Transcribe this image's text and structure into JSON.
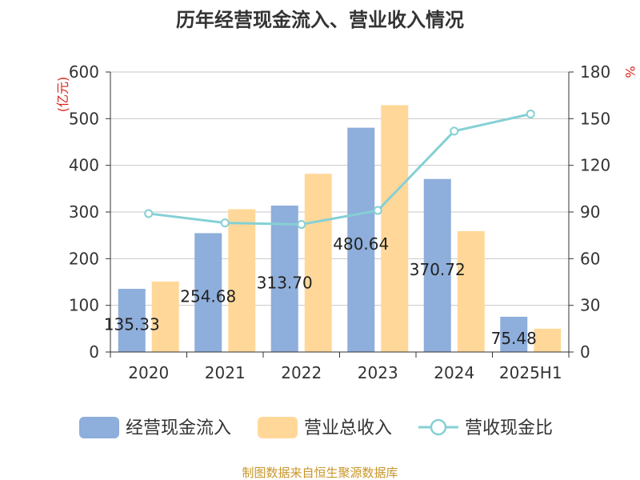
{
  "chart_data": {
    "type": "bar",
    "title": "历年经营现金流入、营业收入情况",
    "categories": [
      "2020",
      "2021",
      "2022",
      "2023",
      "2024",
      "2025H1"
    ],
    "series": [
      {
        "name": "经营现金流入",
        "type": "bar",
        "axis": "left",
        "color": "#8eaedb",
        "values": [
          135.33,
          254.68,
          313.7,
          480.64,
          370.72,
          75.48
        ],
        "labels": [
          "135.33",
          "254.68",
          "313.70",
          "480.64",
          "370.72",
          "75.48"
        ]
      },
      {
        "name": "营业总收入",
        "type": "bar",
        "axis": "left",
        "color": "#ffd899",
        "values": [
          151,
          306,
          382,
          529,
          259,
          50
        ]
      },
      {
        "name": "营收现金比",
        "type": "line",
        "axis": "right",
        "color": "#85d0d5",
        "values": [
          89,
          83,
          82,
          91,
          142,
          153
        ]
      }
    ],
    "y_left": {
      "unit": "(亿元)",
      "ylim": [
        0,
        600
      ],
      "ticks": [
        "0",
        "100",
        "200",
        "300",
        "400",
        "500",
        "600"
      ]
    },
    "y_right": {
      "unit": "%",
      "ylim": [
        0,
        180
      ],
      "ticks": [
        "0",
        "30",
        "60",
        "90",
        "120",
        "150",
        "180"
      ]
    },
    "grid": true,
    "legend_position": "bottom"
  },
  "source_note": "制图数据来自恒生聚源数据库"
}
